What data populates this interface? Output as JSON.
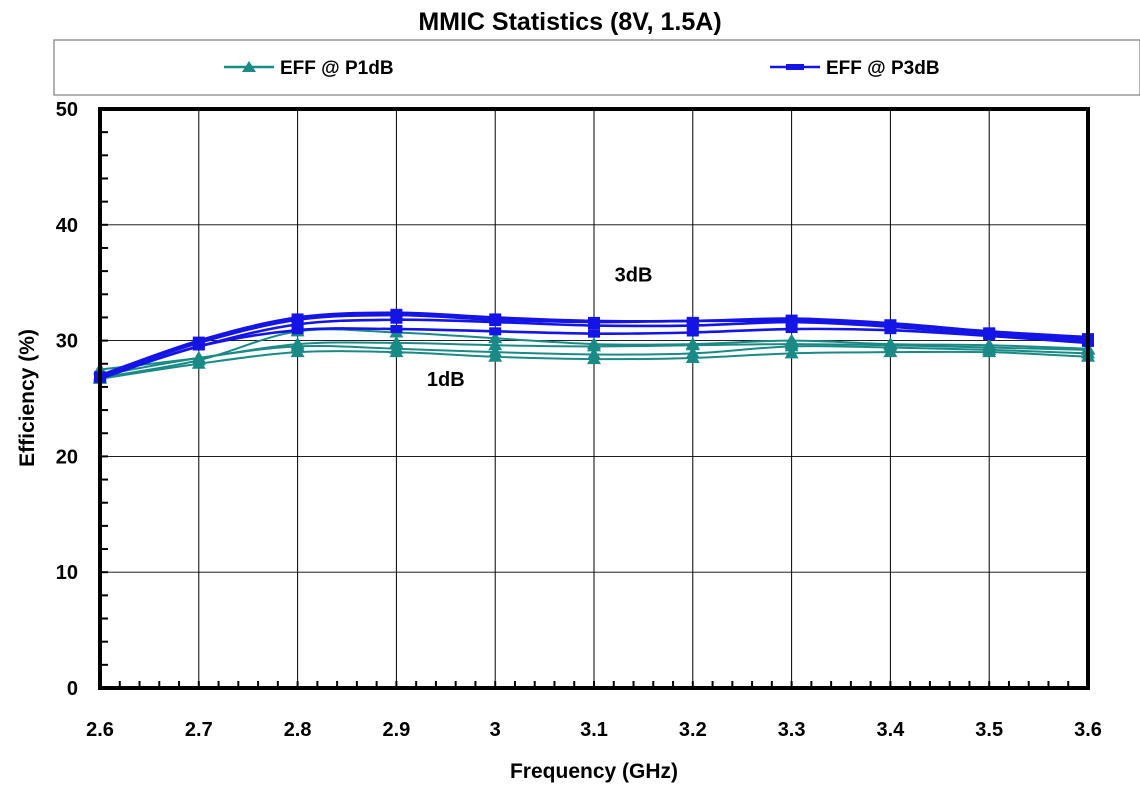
{
  "chart_data": {
    "type": "line",
    "title": "MMIC Statistics (8V, 1.5A)",
    "xlabel": "Frequency (GHz)",
    "ylabel": "Efficiency (%)",
    "xlim": [
      2.6,
      3.6
    ],
    "ylim": [
      0,
      50
    ],
    "x_ticks": [
      "2.6",
      "2.7",
      "2.8",
      "2.9",
      "3",
      "3.1",
      "3.2",
      "3.3",
      "3.4",
      "3.5",
      "3.6"
    ],
    "y_ticks": [
      "0",
      "10",
      "20",
      "30",
      "40",
      "50"
    ],
    "grid": true,
    "legend_position": "top",
    "legend": [
      {
        "label": "EFF @ P1dB",
        "color": "#1a8a86",
        "marker": "triangle"
      },
      {
        "label": "EFF @ P3dB",
        "color": "#1414e6",
        "marker": "dash"
      }
    ],
    "annotations": [
      {
        "text": "3dB",
        "x": 3.14,
        "y": 35.1
      },
      {
        "text": "1dB",
        "x": 2.95,
        "y": 26.1
      }
    ],
    "x": [
      2.6,
      2.7,
      2.8,
      2.9,
      3.0,
      3.1,
      3.2,
      3.3,
      3.4,
      3.5,
      3.6
    ],
    "series": [
      {
        "group": "EFF @ P1dB",
        "color": "#1a8a86",
        "values": [
          27.5,
          28.5,
          29.7,
          29.8,
          29.6,
          29.5,
          29.6,
          29.7,
          29.6,
          29.4,
          29.2
        ]
      },
      {
        "group": "EFF @ P1dB",
        "color": "#1a8a86",
        "values": [
          27.0,
          28.5,
          29.5,
          29.3,
          29.0,
          28.8,
          28.9,
          29.5,
          29.4,
          29.2,
          28.9
        ]
      },
      {
        "group": "EFF @ P1dB",
        "color": "#1a8a86",
        "values": [
          26.7,
          28.0,
          29.0,
          29.0,
          28.6,
          28.4,
          28.5,
          28.9,
          29.0,
          29.0,
          28.6
        ]
      },
      {
        "group": "EFF @ P1dB",
        "color": "#1a8a86",
        "values": [
          26.8,
          28.3,
          30.8,
          30.7,
          30.2,
          29.7,
          29.7,
          30.0,
          29.7,
          29.6,
          29.3
        ]
      },
      {
        "group": "EFF @ P3dB",
        "color": "#1414e6",
        "values": [
          27.0,
          30.0,
          32.0,
          32.4,
          32.0,
          31.7,
          31.7,
          31.9,
          31.5,
          30.8,
          30.3
        ]
      },
      {
        "group": "EFF @ P3dB",
        "color": "#1414e6",
        "values": [
          26.9,
          29.8,
          31.8,
          32.2,
          31.8,
          31.6,
          31.7,
          31.7,
          31.4,
          30.7,
          30.1
        ]
      },
      {
        "group": "EFF @ P3dB",
        "color": "#1414e6",
        "values": [
          26.8,
          29.5,
          31.4,
          31.8,
          31.6,
          31.3,
          31.3,
          31.6,
          31.2,
          30.5,
          29.9
        ]
      },
      {
        "group": "EFF @ P3dB",
        "color": "#1414e6",
        "values": [
          26.7,
          29.5,
          30.9,
          31.0,
          30.8,
          30.6,
          30.7,
          31.0,
          30.9,
          30.4,
          29.8
        ]
      }
    ]
  }
}
